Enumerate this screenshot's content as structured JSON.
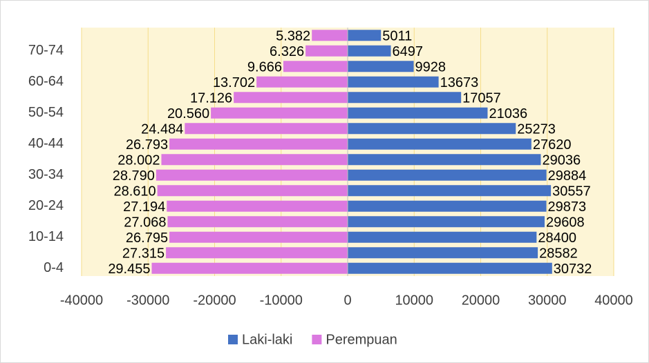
{
  "chart_data": {
    "type": "pyramid",
    "categories": [
      "0-4",
      null,
      "10-14",
      null,
      "20-24",
      null,
      "30-34",
      null,
      "40-44",
      null,
      "50-54",
      null,
      "60-64",
      null,
      "70-74",
      null
    ],
    "series": [
      {
        "name": "Laki-laki",
        "color": "#4472c4",
        "values": [
          30732,
          28582,
          28400,
          29608,
          29873,
          30557,
          29884,
          29036,
          27620,
          25273,
          21036,
          17057,
          13673,
          9928,
          6497,
          5011
        ]
      },
      {
        "name": "Perempuan",
        "color": "#db79e0",
        "values": [
          -29455,
          -27315,
          -26795,
          -27068,
          -27194,
          -28610,
          -28790,
          -28002,
          -26793,
          -24484,
          -20560,
          -17126,
          -13702,
          -9666,
          -6326,
          -5382
        ],
        "value_labels": [
          "29.455",
          "27.315",
          "26.795",
          "27.068",
          "27.194",
          "28.610",
          "28.790",
          "28.002",
          "26.793",
          "24.484",
          "20.560",
          "17.126",
          "13.702",
          "9.666",
          "6.326",
          "5.382"
        ]
      }
    ],
    "xlim": [
      -40000,
      40000
    ],
    "xticks": [
      -40000,
      -30000,
      -20000,
      -10000,
      0,
      10000,
      20000,
      30000,
      40000
    ],
    "grid": true,
    "legend": "bottom"
  }
}
